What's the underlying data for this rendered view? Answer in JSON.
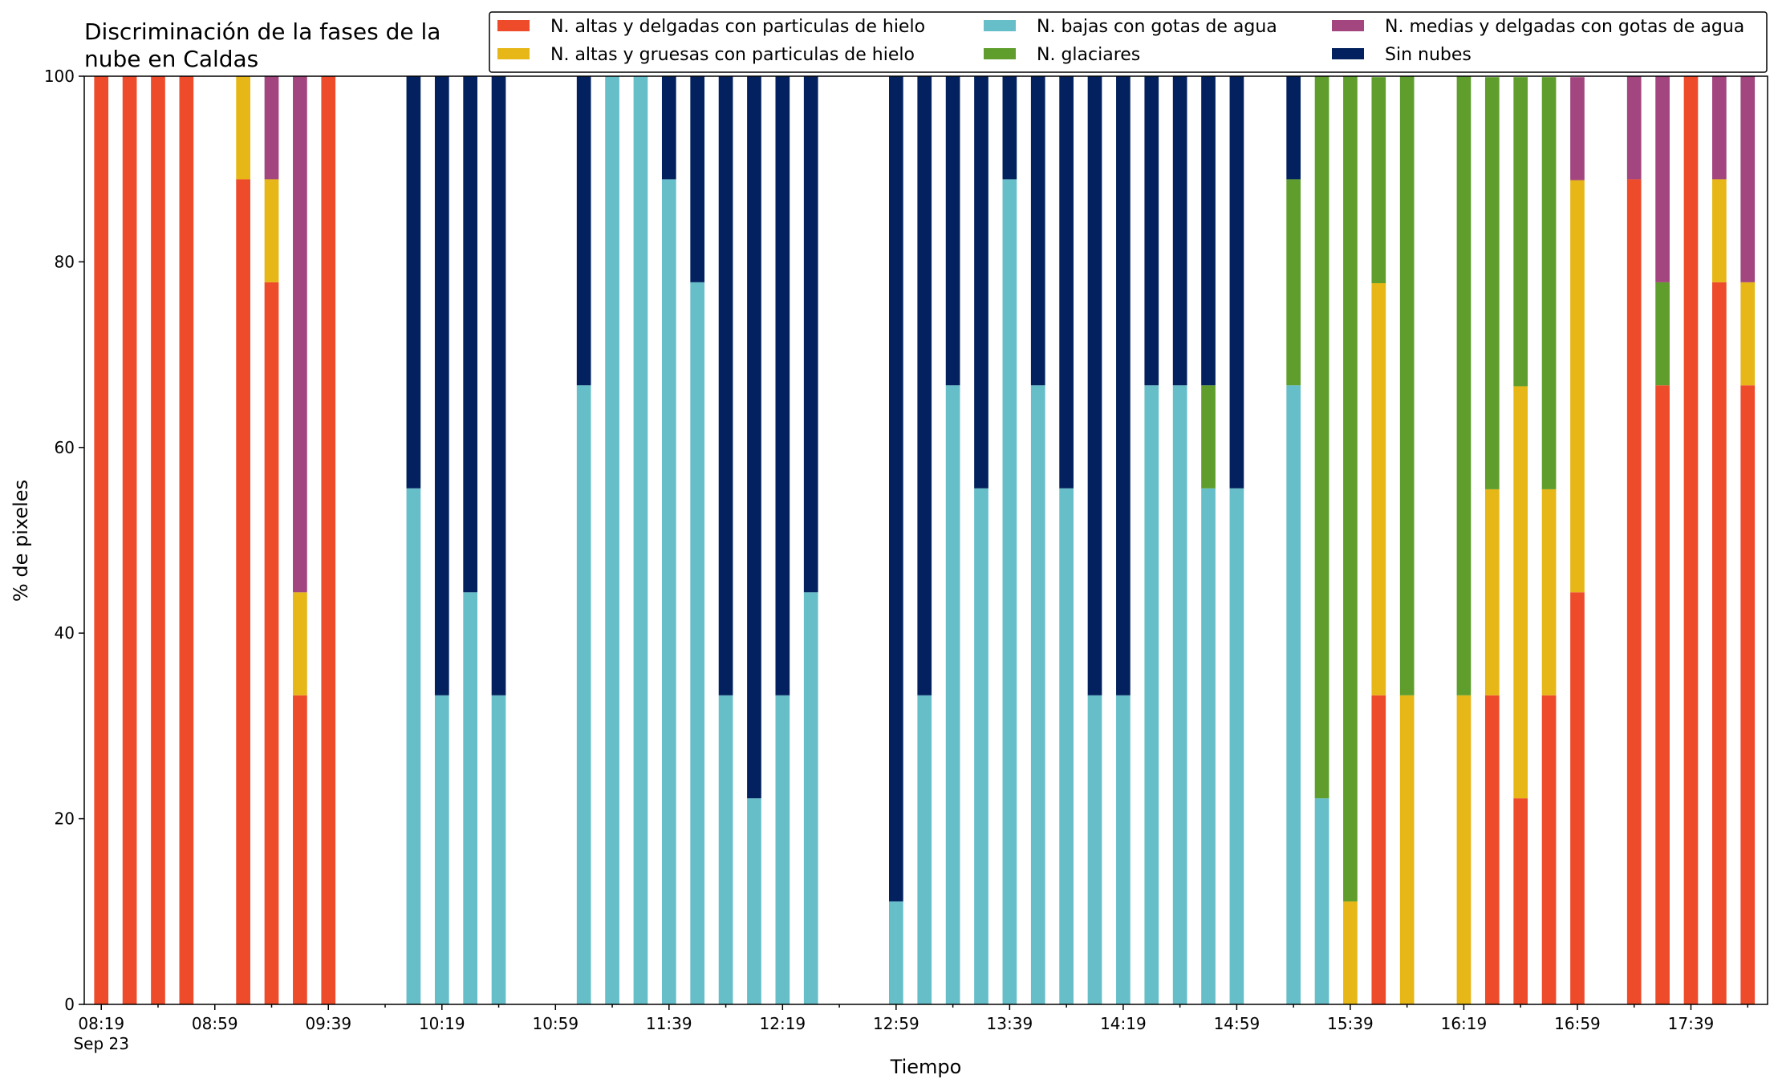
{
  "chart_data": {
    "type": "bar",
    "stacked": true,
    "title_lines": [
      "Discriminación de la fases de la",
      "nube en Caldas"
    ],
    "xlabel": "Tiempo",
    "ylabel": "% de pixeles",
    "ylim": [
      0,
      100
    ],
    "yticks": [
      0,
      20,
      40,
      60,
      80,
      100
    ],
    "xlim": [
      "08:13",
      "18:06"
    ],
    "grid": false,
    "legend_position": "top-right",
    "legend_columns": 3,
    "xtick_labels": [
      {
        "time": "08:19",
        "label": "08:19",
        "sublabel": "Sep 23"
      },
      {
        "time": "08:59",
        "label": "08:59"
      },
      {
        "time": "09:39",
        "label": "09:39"
      },
      {
        "time": "10:19",
        "label": "10:19"
      },
      {
        "time": "10:59",
        "label": "10:59"
      },
      {
        "time": "11:39",
        "label": "11:39"
      },
      {
        "time": "12:19",
        "label": "12:19"
      },
      {
        "time": "12:59",
        "label": "12:59"
      },
      {
        "time": "13:39",
        "label": "13:39"
      },
      {
        "time": "14:19",
        "label": "14:19"
      },
      {
        "time": "14:59",
        "label": "14:59"
      },
      {
        "time": "15:39",
        "label": "15:39"
      },
      {
        "time": "16:19",
        "label": "16:19"
      },
      {
        "time": "16:59",
        "label": "16:59"
      },
      {
        "time": "17:39",
        "label": "17:39"
      }
    ],
    "series": [
      {
        "key": "altas_delgadas",
        "name": "N. altas y delgadas con particulas de hielo",
        "color": "#ee4b2b"
      },
      {
        "key": "altas_gruesas",
        "name": "N. altas y gruesas con particulas de hielo",
        "color": "#e6b717"
      },
      {
        "key": "bajas_agua",
        "name": "N. bajas con gotas de agua",
        "color": "#66bec9"
      },
      {
        "key": "glaciares",
        "name": "N. glaciares",
        "color": "#5f9e2d"
      },
      {
        "key": "medias_delgadas",
        "name": "N. medias y delgadas con gotas de agua",
        "color": "#a3457e"
      },
      {
        "key": "sin_nubes",
        "name": "Sin nubes",
        "color": "#02215e"
      }
    ],
    "stack_order": [
      "altas_delgadas",
      "bajas_agua",
      "altas_gruesas",
      "glaciares",
      "medias_delgadas",
      "sin_nubes"
    ],
    "bars": [
      {
        "time": "08:19",
        "values": {
          "altas_delgadas": 100
        }
      },
      {
        "time": "08:29",
        "values": {
          "altas_delgadas": 100
        }
      },
      {
        "time": "08:39",
        "values": {
          "altas_delgadas": 100
        }
      },
      {
        "time": "08:49",
        "values": {
          "altas_delgadas": 100
        }
      },
      {
        "time": "09:09",
        "values": {
          "altas_delgadas": 88.9,
          "altas_gruesas": 11.1
        }
      },
      {
        "time": "09:19",
        "values": {
          "altas_delgadas": 77.8,
          "altas_gruesas": 11.1,
          "medias_delgadas": 11.1
        }
      },
      {
        "time": "09:29",
        "values": {
          "altas_delgadas": 33.3,
          "altas_gruesas": 11.1,
          "medias_delgadas": 55.6
        }
      },
      {
        "time": "09:39",
        "values": {
          "altas_delgadas": 100
        }
      },
      {
        "time": "10:09",
        "values": {
          "bajas_agua": 55.6,
          "sin_nubes": 44.4
        }
      },
      {
        "time": "10:19",
        "values": {
          "bajas_agua": 33.3,
          "sin_nubes": 66.7
        }
      },
      {
        "time": "10:29",
        "values": {
          "bajas_agua": 44.4,
          "sin_nubes": 55.6
        }
      },
      {
        "time": "10:39",
        "values": {
          "bajas_agua": 33.3,
          "sin_nubes": 66.7
        }
      },
      {
        "time": "11:09",
        "values": {
          "bajas_agua": 66.7,
          "sin_nubes": 33.3
        }
      },
      {
        "time": "11:19",
        "values": {
          "bajas_agua": 100
        }
      },
      {
        "time": "11:29",
        "values": {
          "bajas_agua": 100
        }
      },
      {
        "time": "11:39",
        "values": {
          "bajas_agua": 88.9,
          "sin_nubes": 11.1
        }
      },
      {
        "time": "11:49",
        "values": {
          "bajas_agua": 77.8,
          "sin_nubes": 22.2
        }
      },
      {
        "time": "11:59",
        "values": {
          "bajas_agua": 33.3,
          "sin_nubes": 66.7
        }
      },
      {
        "time": "12:09",
        "values": {
          "bajas_agua": 22.2,
          "sin_nubes": 77.8
        }
      },
      {
        "time": "12:19",
        "values": {
          "bajas_agua": 33.3,
          "sin_nubes": 66.7
        }
      },
      {
        "time": "12:29",
        "values": {
          "bajas_agua": 44.4,
          "sin_nubes": 55.6
        }
      },
      {
        "time": "12:59",
        "values": {
          "bajas_agua": 11.1,
          "sin_nubes": 88.9
        }
      },
      {
        "time": "13:09",
        "values": {
          "bajas_agua": 33.3,
          "sin_nubes": 66.7
        }
      },
      {
        "time": "13:19",
        "values": {
          "bajas_agua": 66.7,
          "sin_nubes": 33.3
        }
      },
      {
        "time": "13:29",
        "values": {
          "bajas_agua": 55.6,
          "sin_nubes": 44.4
        }
      },
      {
        "time": "13:39",
        "values": {
          "bajas_agua": 88.9,
          "sin_nubes": 11.1
        }
      },
      {
        "time": "13:49",
        "values": {
          "bajas_agua": 66.7,
          "sin_nubes": 33.3
        }
      },
      {
        "time": "13:59",
        "values": {
          "bajas_agua": 55.6,
          "sin_nubes": 44.4
        }
      },
      {
        "time": "14:09",
        "values": {
          "bajas_agua": 33.3,
          "sin_nubes": 66.7
        }
      },
      {
        "time": "14:19",
        "values": {
          "bajas_agua": 33.3,
          "sin_nubes": 66.7
        }
      },
      {
        "time": "14:29",
        "values": {
          "bajas_agua": 66.7,
          "sin_nubes": 33.3
        }
      },
      {
        "time": "14:39",
        "values": {
          "bajas_agua": 66.7,
          "sin_nubes": 33.3
        }
      },
      {
        "time": "14:49",
        "values": {
          "bajas_agua": 55.6,
          "glaciares": 11.1,
          "sin_nubes": 33.3
        }
      },
      {
        "time": "14:59",
        "values": {
          "bajas_agua": 55.6,
          "sin_nubes": 44.4
        }
      },
      {
        "time": "15:19",
        "values": {
          "bajas_agua": 66.7,
          "glaciares": 22.2,
          "sin_nubes": 11.1
        }
      },
      {
        "time": "15:29",
        "values": {
          "bajas_agua": 22.2,
          "glaciares": 77.8
        }
      },
      {
        "time": "15:39",
        "values": {
          "altas_gruesas": 11.1,
          "glaciares": 88.9
        }
      },
      {
        "time": "15:49",
        "values": {
          "altas_delgadas": 33.3,
          "altas_gruesas": 44.4,
          "glaciares": 22.2
        }
      },
      {
        "time": "15:59",
        "values": {
          "altas_gruesas": 33.3,
          "glaciares": 66.7
        }
      },
      {
        "time": "16:19",
        "values": {
          "altas_gruesas": 33.3,
          "glaciares": 66.7
        }
      },
      {
        "time": "16:29",
        "values": {
          "altas_delgadas": 33.3,
          "altas_gruesas": 22.2,
          "glaciares": 44.4
        }
      },
      {
        "time": "16:39",
        "values": {
          "altas_delgadas": 22.2,
          "altas_gruesas": 44.4,
          "glaciares": 33.3
        }
      },
      {
        "time": "16:49",
        "values": {
          "altas_delgadas": 33.3,
          "altas_gruesas": 22.2,
          "glaciares": 44.4
        }
      },
      {
        "time": "16:59",
        "values": {
          "altas_delgadas": 44.4,
          "altas_gruesas": 44.4,
          "medias_delgadas": 11.1
        }
      },
      {
        "time": "17:19",
        "values": {
          "altas_delgadas": 88.9,
          "medias_delgadas": 11.1
        }
      },
      {
        "time": "17:29",
        "values": {
          "altas_delgadas": 66.7,
          "glaciares": 11.1,
          "medias_delgadas": 22.2
        }
      },
      {
        "time": "17:39",
        "values": {
          "altas_delgadas": 100
        }
      },
      {
        "time": "17:49",
        "values": {
          "altas_delgadas": 77.8,
          "altas_gruesas": 11.1,
          "medias_delgadas": 11.1
        }
      },
      {
        "time": "17:59",
        "values": {
          "altas_delgadas": 66.7,
          "altas_gruesas": 11.1,
          "medias_delgadas": 22.2
        }
      }
    ]
  }
}
